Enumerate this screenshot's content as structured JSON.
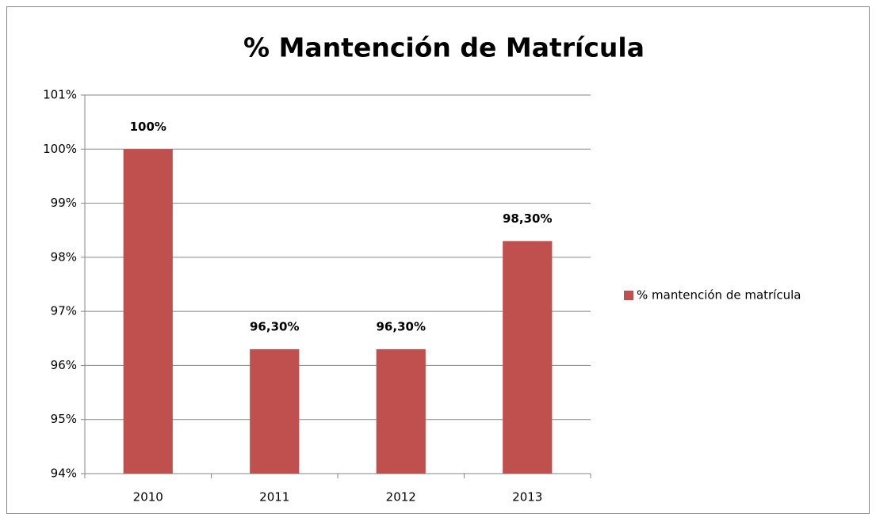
{
  "chart_data": {
    "type": "bar",
    "title": "% Mantención de Matrícula",
    "categories": [
      "2010",
      "2011",
      "2012",
      "2013"
    ],
    "series": [
      {
        "name": "% mantención de matrícula",
        "color": "#c0504d",
        "values": [
          100,
          96.3,
          96.3,
          98.3
        ],
        "value_labels": [
          "100%",
          "96,30%",
          "96,30%",
          "98,30%"
        ]
      }
    ],
    "ylim": [
      94,
      101
    ],
    "yticks": [
      {
        "value": 94,
        "label": "94%"
      },
      {
        "value": 95,
        "label": "95%"
      },
      {
        "value": 96,
        "label": "96%"
      },
      {
        "value": 97,
        "label": "97%"
      },
      {
        "value": 98,
        "label": "98%"
      },
      {
        "value": 99,
        "label": "99%"
      },
      {
        "value": 100,
        "label": "100%"
      },
      {
        "value": 101,
        "label": "101%"
      }
    ],
    "grid": true,
    "legend": "right"
  }
}
